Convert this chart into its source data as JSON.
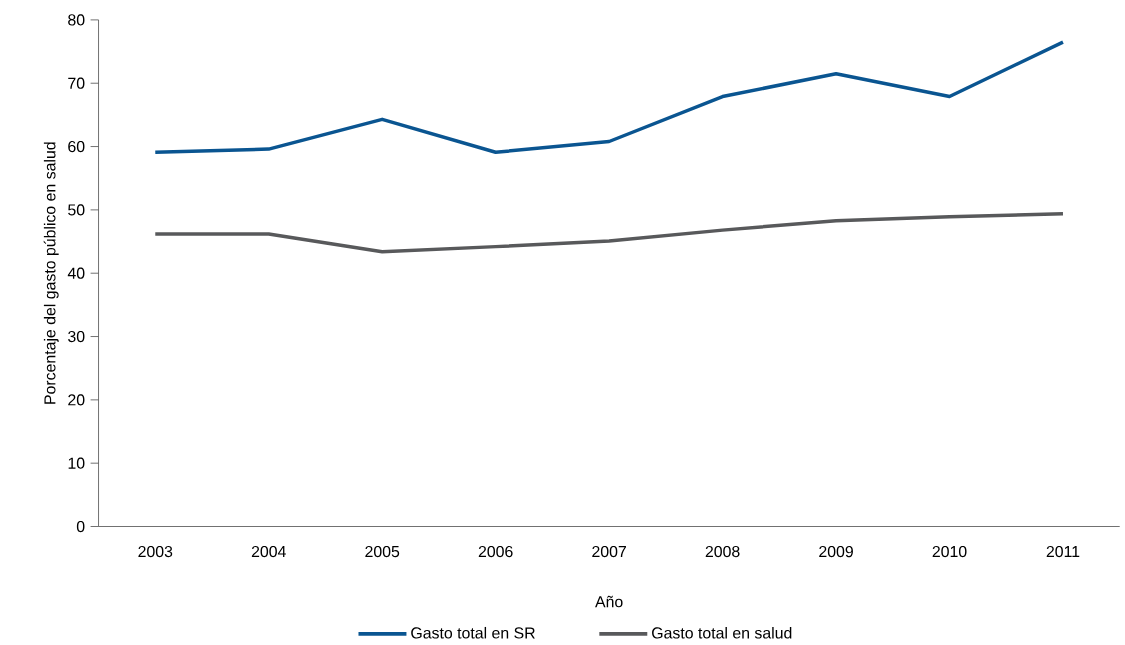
{
  "chart_data": {
    "type": "line",
    "xlabel": "Año",
    "ylabel": "Porcentaje del gasto público en salud",
    "categories": [
      "2003",
      "2004",
      "2005",
      "2006",
      "2007",
      "2008",
      "2009",
      "2010",
      "2011"
    ],
    "series": [
      {
        "name": "Gasto total en SR",
        "color": "#0a5591",
        "values": [
          59.1,
          59.6,
          64.3,
          59.1,
          60.8,
          67.9,
          71.5,
          67.9,
          76.5
        ]
      },
      {
        "name": "Gasto total en salud",
        "color": "#58595b",
        "values": [
          46.2,
          46.2,
          43.4,
          44.2,
          45.1,
          46.8,
          48.3,
          48.9,
          49.4
        ]
      }
    ],
    "ylim": [
      0,
      80
    ],
    "yticks": [
      0,
      10,
      20,
      30,
      40,
      50,
      60,
      70,
      80
    ],
    "grid": false,
    "legend": "bottom",
    "marker": "none",
    "line_style": "solid"
  }
}
